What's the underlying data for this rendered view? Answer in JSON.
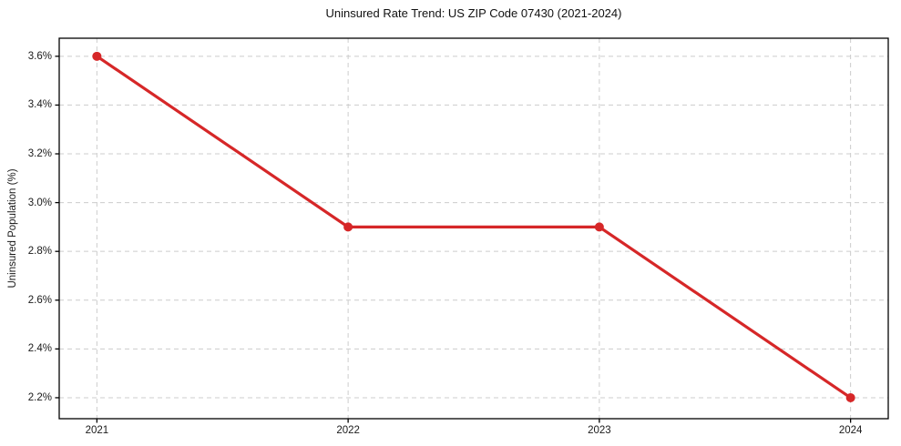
{
  "chart_data": {
    "type": "line",
    "title": "Uninsured Rate Trend: US ZIP Code 07430 (2021-2024)",
    "xlabel": "",
    "ylabel": "Uninsured Population (%)",
    "x": [
      2021,
      2022,
      2023,
      2024
    ],
    "values": [
      3.6,
      2.9,
      2.9,
      2.2
    ],
    "xlim": [
      2020.85,
      2024.15
    ],
    "ylim": [
      2.114,
      3.674
    ],
    "xticks": {
      "values": [
        2021,
        2022,
        2023,
        2024
      ],
      "labels": [
        "2021",
        "2022",
        "2023",
        "2024"
      ]
    },
    "yticks": {
      "values": [
        2.2,
        2.4,
        2.6,
        2.8,
        3.0,
        3.2,
        3.4,
        3.6
      ],
      "labels": [
        "2.2%",
        "2.4%",
        "2.6%",
        "2.8%",
        "3.0%",
        "3.2%",
        "3.4%",
        "3.6%"
      ]
    },
    "grid": true,
    "grid_style": "dashed",
    "legend": false,
    "marker": "circle",
    "line_width": 3.2,
    "marker_radius": 5,
    "colors": {
      "line": "#d62728",
      "grid": "#cccccc",
      "spine": "#000000",
      "tick": "#000000",
      "text": "#1a1a1a"
    }
  }
}
